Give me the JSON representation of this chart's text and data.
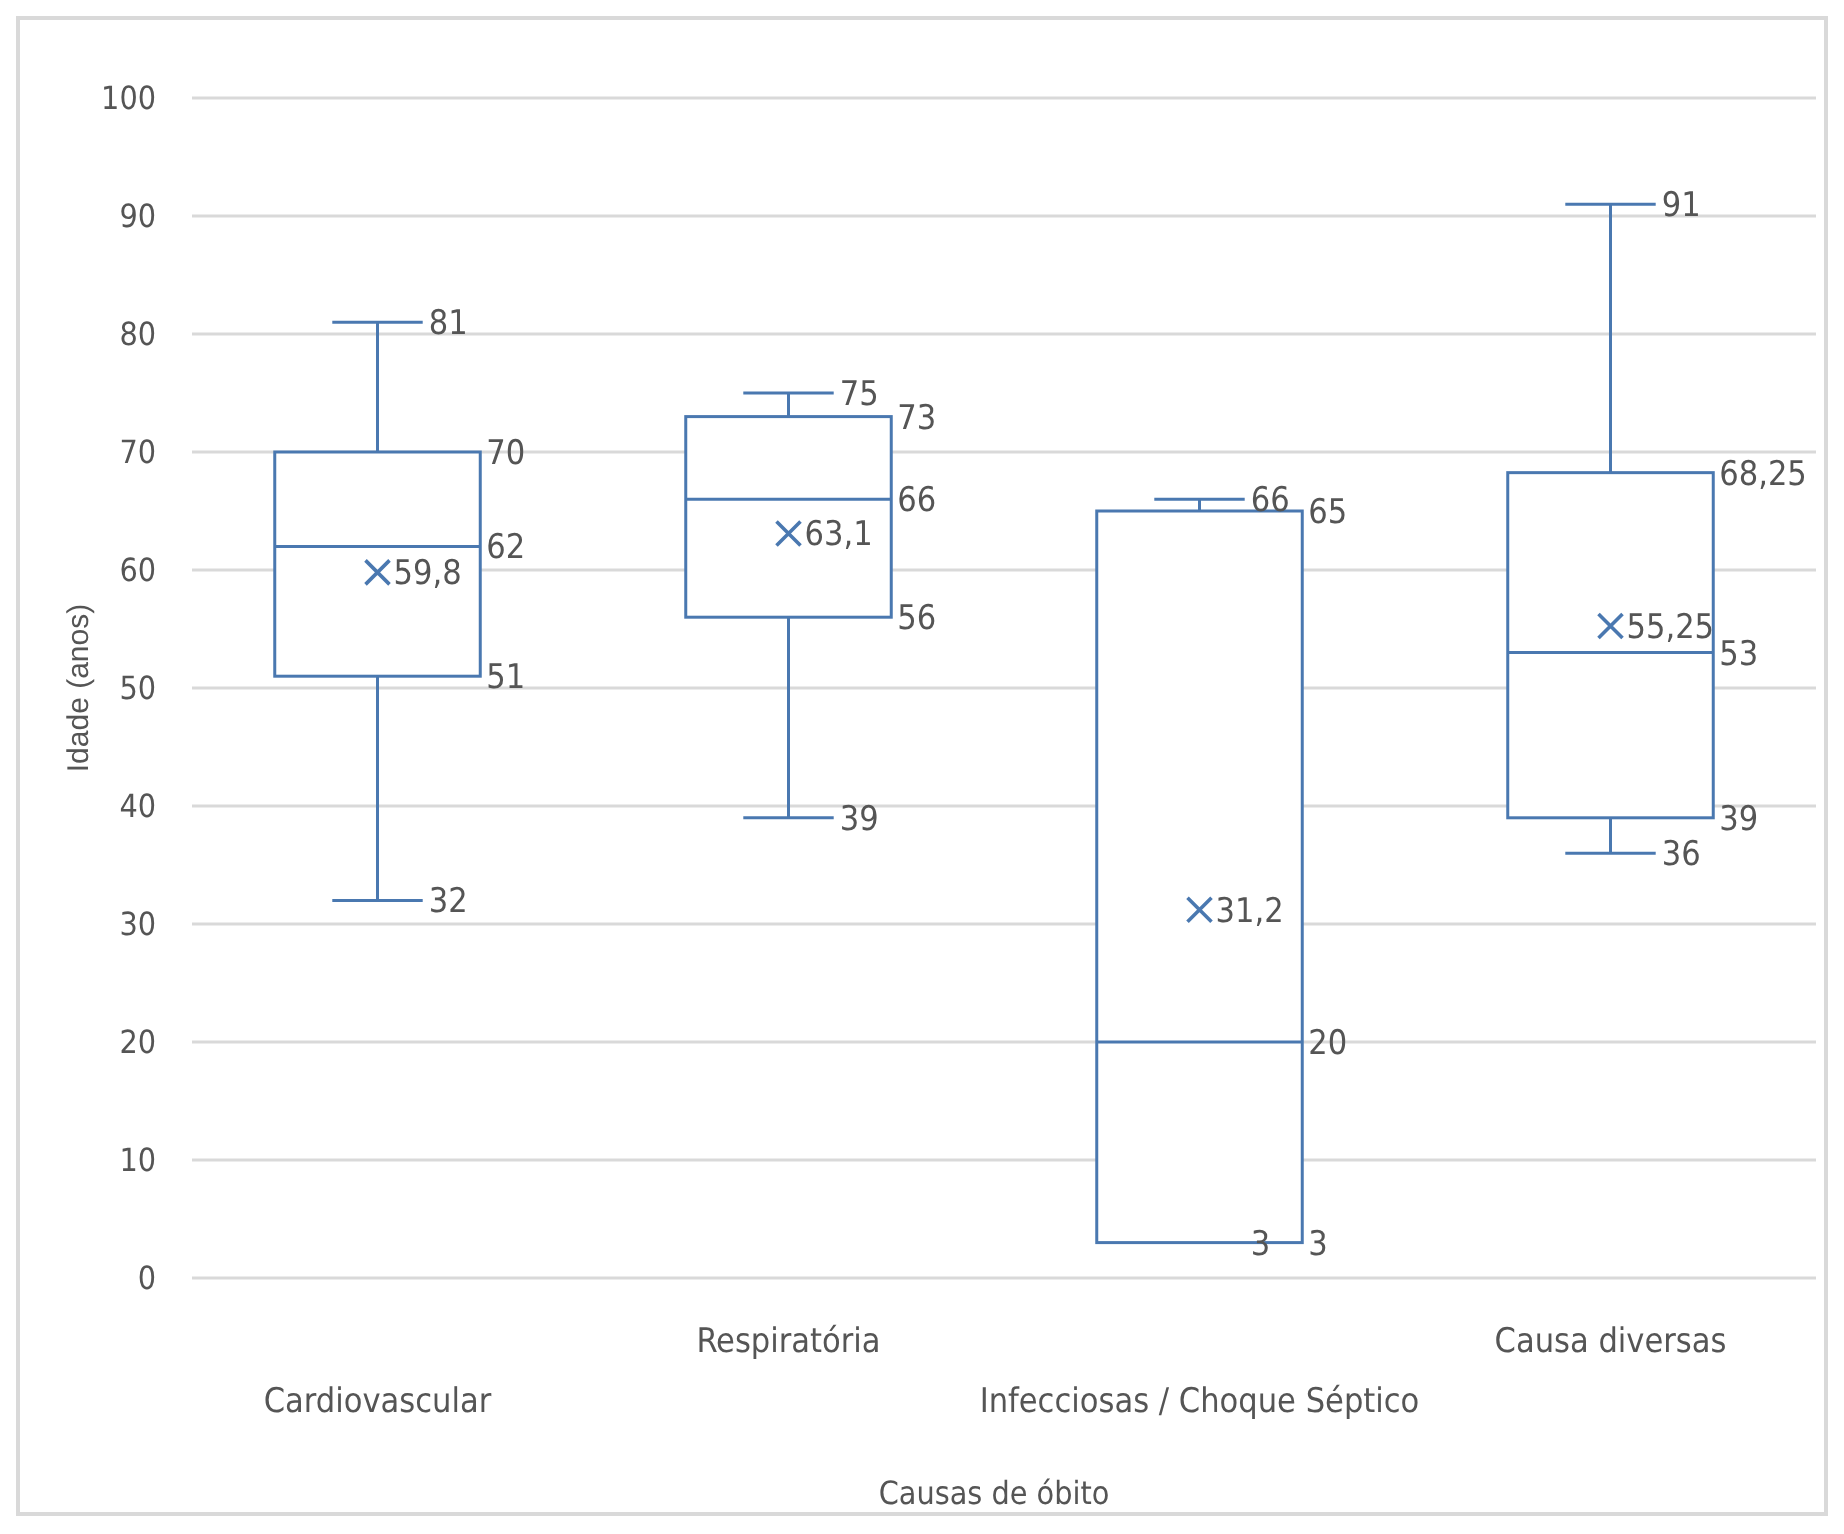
{
  "chart_data": {
    "type": "box",
    "xlabel": "Causas de óbito",
    "ylabel": "Idade (anos)",
    "categories": [
      "Cardiovascular",
      "Respiratória",
      "Infecciosas / Choque Séptico",
      "Causa diversas"
    ],
    "boxes": [
      {
        "low": 32,
        "q1": 51,
        "median": 62,
        "q3": 70,
        "high": 81,
        "mean": 59.8
      },
      {
        "low": 39,
        "q1": 56,
        "median": 66,
        "q3": 73,
        "high": 75,
        "mean": 63.1
      },
      {
        "low": 3,
        "q1": 3,
        "median": 20,
        "q3": 65,
        "high": 66,
        "mean": 31.2
      },
      {
        "low": 36,
        "q1": 39,
        "median": 53,
        "q3": 68.25,
        "high": 91,
        "mean": 55.25
      }
    ],
    "value_labels": [
      {
        "low": "32",
        "q1": "51",
        "median": "62",
        "q3": "70",
        "high": "81",
        "mean": "59,8"
      },
      {
        "low": "39",
        "q1": "56",
        "median": "66",
        "q3": "73",
        "high": "75",
        "mean": "63,1"
      },
      {
        "low": "3",
        "q1": "3",
        "median": "20",
        "q3": "65",
        "high": "66",
        "mean": "31,2"
      },
      {
        "low": "36",
        "q1": "39",
        "median": "53",
        "q3": "68,25",
        "high": "91",
        "mean": "55,25"
      }
    ],
    "color": "#4a78b0",
    "ylim": [
      0,
      100
    ],
    "yticks": [
      0,
      10,
      20,
      30,
      40,
      50,
      60,
      70,
      80,
      90,
      100
    ],
    "grid": "y",
    "marker": "cross"
  }
}
